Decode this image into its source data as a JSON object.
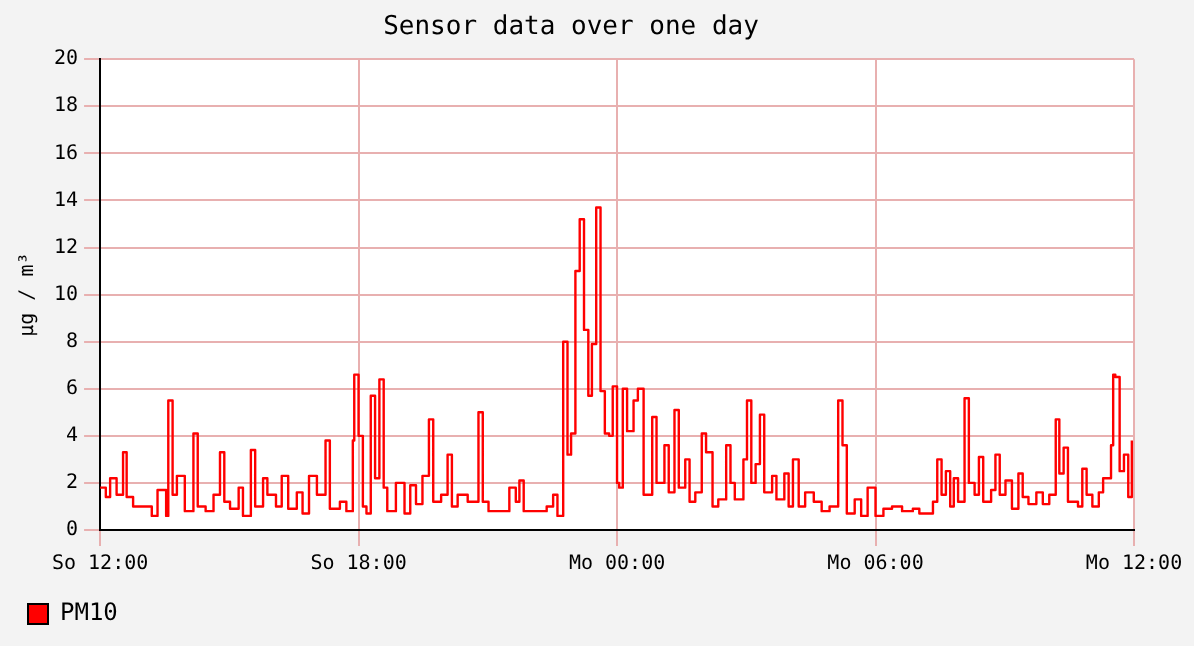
{
  "chart_data": {
    "type": "step",
    "title": "Sensor data over one day",
    "ylabel": "µg / m³",
    "legend": "bottom left",
    "grid": true,
    "xlim": [
      "--01-07T12:00",
      "--01-08T12:00"
    ],
    "xticks": [
      {
        "value": "--01-07T12:00",
        "label": "So 12:00"
      },
      {
        "value": "--01-07T18:00",
        "label": "So 18:00"
      },
      {
        "value": "--01-08T00:00",
        "label": "Mo 00:00"
      },
      {
        "value": "--01-08T06:00",
        "label": "Mo 06:00"
      },
      {
        "value": "--01-08T12:00",
        "label": "Mo 12:00"
      }
    ],
    "ylim": [
      0,
      20
    ],
    "yticks": [
      0,
      2,
      4,
      6,
      8,
      10,
      12,
      14,
      16,
      18,
      20
    ],
    "series": [
      {
        "name": "PM10",
        "color": "#ff0000",
        "x": [
          "--01-07T12:00",
          "--01-07T12:08",
          "--01-07T12:14",
          "--01-07T12:23",
          "--01-07T12:32",
          "--01-07T12:37",
          "--01-07T12:46",
          "--01-07T13:01",
          "--01-07T13:12",
          "--01-07T13:20",
          "--01-07T13:32",
          "--01-07T13:35",
          "--01-07T13:41",
          "--01-07T13:47",
          "--01-07T13:58",
          "--01-07T14:10",
          "--01-07T14:16",
          "--01-07T14:27",
          "--01-07T14:38",
          "--01-07T14:47",
          "--01-07T14:53",
          "--01-07T15:01",
          "--01-07T15:13",
          "--01-07T15:19",
          "--01-07T15:30",
          "--01-07T15:36",
          "--01-07T15:47",
          "--01-07T15:53",
          "--01-07T16:05",
          "--01-07T16:13",
          "--01-07T16:22",
          "--01-07T16:34",
          "--01-07T16:42",
          "--01-07T16:51",
          "--01-07T17:02",
          "--01-07T17:14",
          "--01-07T17:20",
          "--01-07T17:34",
          "--01-07T17:43",
          "--01-07T17:52",
          "--01-07T17:54",
          "--01-07T18:00",
          "--01-07T18:06",
          "--01-07T18:11",
          "--01-07T18:17",
          "--01-07T18:23",
          "--01-07T18:29",
          "--01-07T18:35",
          "--01-07T18:40",
          "--01-07T18:52",
          "--01-07T19:04",
          "--01-07T19:12",
          "--01-07T19:20",
          "--01-07T19:29",
          "--01-07T19:38",
          "--01-07T19:44",
          "--01-07T19:55",
          "--01-07T20:04",
          "--01-07T20:10",
          "--01-07T20:18",
          "--01-07T20:32",
          "--01-07T20:47",
          "--01-07T20:53",
          "--01-07T21:01",
          "--01-07T21:22",
          "--01-07T21:30",
          "--01-07T21:39",
          "--01-07T21:44",
          "--01-07T21:50",
          "--01-07T22:08",
          "--01-07T22:22",
          "--01-07T22:31",
          "--01-07T22:37",
          "--01-07T22:45",
          "--01-07T22:51",
          "--01-07T22:56",
          "--01-07T23:02",
          "--01-07T23:08",
          "--01-07T23:14",
          "--01-07T23:20",
          "--01-07T23:25",
          "--01-07T23:31",
          "--01-07T23:37",
          "--01-07T23:43",
          "--01-07T23:49",
          "--01-07T23:54",
          "--01-08T00:00",
          "--01-08T00:03",
          "--01-08T00:08",
          "--01-08T00:14",
          "--01-08T00:23",
          "--01-08T00:29",
          "--01-08T00:37",
          "--01-08T00:49",
          "--01-08T00:55",
          "--01-08T01:06",
          "--01-08T01:12",
          "--01-08T01:20",
          "--01-08T01:26",
          "--01-08T01:35",
          "--01-08T01:41",
          "--01-08T01:49",
          "--01-08T01:58",
          "--01-08T02:04",
          "--01-08T02:13",
          "--01-08T02:21",
          "--01-08T02:32",
          "--01-08T02:38",
          "--01-08T02:44",
          "--01-08T02:56",
          "--01-08T03:01",
          "--01-08T03:07",
          "--01-08T03:13",
          "--01-08T03:19",
          "--01-08T03:25",
          "--01-08T03:36",
          "--01-08T03:42",
          "--01-08T03:53",
          "--01-08T03:59",
          "--01-08T04:05",
          "--01-08T04:13",
          "--01-08T04:22",
          "--01-08T04:34",
          "--01-08T04:45",
          "--01-08T04:56",
          "--01-08T05:08",
          "--01-08T05:14",
          "--01-08T05:20",
          "--01-08T05:31",
          "--01-08T05:40",
          "--01-08T05:49",
          "--01-08T06:00",
          "--01-08T06:11",
          "--01-08T06:23",
          "--01-08T06:37",
          "--01-08T06:52",
          "--01-08T07:01",
          "--01-08T07:20",
          "--01-08T07:26",
          "--01-08T07:32",
          "--01-08T07:38",
          "--01-08T07:44",
          "--01-08T07:49",
          "--01-08T07:55",
          "--01-08T08:04",
          "--01-08T08:10",
          "--01-08T08:18",
          "--01-08T08:24",
          "--01-08T08:30",
          "--01-08T08:41",
          "--01-08T08:47",
          "--01-08T08:53",
          "--01-08T09:01",
          "--01-08T09:10",
          "--01-08T09:19",
          "--01-08T09:25",
          "--01-08T09:33",
          "--01-08T09:44",
          "--01-08T09:53",
          "--01-08T10:02",
          "--01-08T10:11",
          "--01-08T10:16",
          "--01-08T10:22",
          "--01-08T10:28",
          "--01-08T10:42",
          "--01-08T10:48",
          "--01-08T10:54",
          "--01-08T11:02",
          "--01-08T11:11",
          "--01-08T11:17",
          "--01-08T11:28",
          "--01-08T11:31",
          "--01-08T11:34",
          "--01-08T11:40",
          "--01-08T11:46",
          "--01-08T11:52",
          "--01-08T11:57"
        ],
        "values": [
          1.8,
          1.4,
          2.2,
          1.5,
          3.3,
          1.4,
          1.0,
          1.0,
          0.6,
          1.7,
          0.6,
          5.5,
          1.5,
          2.3,
          0.8,
          4.1,
          1.0,
          0.8,
          1.5,
          3.3,
          1.2,
          0.9,
          1.8,
          0.6,
          3.4,
          1.0,
          2.2,
          1.5,
          1.0,
          2.3,
          0.9,
          1.6,
          0.7,
          2.3,
          1.5,
          3.8,
          0.9,
          1.2,
          0.8,
          3.8,
          6.6,
          4.0,
          1.0,
          0.7,
          5.7,
          2.2,
          6.4,
          1.8,
          0.8,
          2.0,
          0.7,
          1.9,
          1.1,
          2.3,
          4.7,
          1.2,
          1.5,
          3.2,
          1.0,
          1.5,
          1.2,
          5.0,
          1.2,
          0.8,
          0.8,
          1.8,
          1.2,
          2.1,
          0.8,
          0.8,
          1.0,
          1.5,
          0.6,
          8.0,
          3.2,
          4.1,
          11.0,
          13.2,
          8.5,
          5.7,
          7.9,
          13.7,
          5.9,
          4.1,
          4.0,
          6.1,
          2.0,
          1.8,
          6.0,
          4.2,
          5.5,
          6.0,
          1.5,
          4.8,
          2.0,
          3.6,
          1.6,
          5.1,
          1.8,
          3.0,
          1.2,
          1.6,
          4.1,
          3.3,
          1.0,
          1.3,
          3.6,
          2.0,
          1.3,
          3.0,
          5.5,
          2.0,
          2.8,
          4.9,
          1.6,
          2.3,
          1.3,
          2.4,
          1.0,
          3.0,
          1.0,
          1.6,
          1.2,
          0.8,
          1.0,
          5.5,
          3.6,
          0.7,
          1.3,
          0.6,
          1.8,
          0.6,
          0.9,
          1.0,
          0.8,
          0.9,
          0.7,
          1.2,
          3.0,
          1.5,
          2.5,
          1.0,
          2.2,
          1.2,
          5.6,
          2.0,
          1.5,
          3.1,
          1.2,
          1.7,
          3.2,
          1.5,
          2.1,
          0.9,
          2.4,
          1.4,
          1.1,
          1.6,
          1.1,
          1.5,
          4.7,
          2.4,
          3.5,
          1.2,
          1.0,
          2.6,
          1.5,
          1.0,
          1.6,
          2.2,
          3.6,
          6.6,
          6.5,
          2.5,
          3.2,
          1.4,
          3.8
        ]
      }
    ]
  }
}
